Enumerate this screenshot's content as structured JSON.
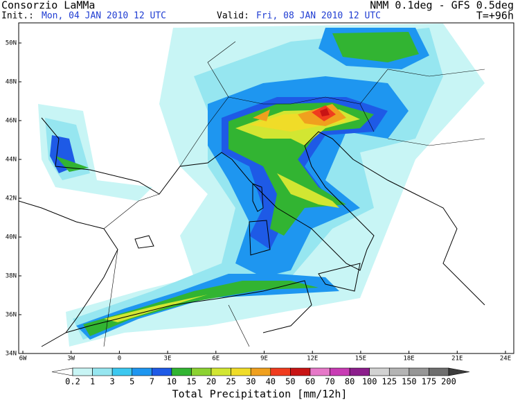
{
  "header": {
    "title": "Consorzio LaMMa",
    "model": "NMM 0.1deg - GFS 0.5deg",
    "init_label": "Init.:",
    "init": "Mon, 04 JAN 2010  12 UTC",
    "valid_label": "Valid:",
    "valid": "Fri, 08 JAN 2010  12 UTC",
    "lead": "T=+96h"
  },
  "map": {
    "lon_labels": [
      "6W",
      "3W",
      "0",
      "3E",
      "6E",
      "9E",
      "12E",
      "15E",
      "18E",
      "21E",
      "24E"
    ],
    "lat_labels": [
      "34N",
      "36N",
      "38N",
      "40N",
      "42N",
      "44N",
      "46N",
      "48N",
      "50N"
    ]
  },
  "legend": {
    "levels": [
      0.2,
      1,
      3,
      5,
      7,
      10,
      15,
      20,
      25,
      30,
      40,
      50,
      60,
      70,
      80,
      100,
      125,
      150,
      175,
      200
    ],
    "colors": [
      "#ffffff",
      "#c8f5f5",
      "#96e6f0",
      "#3cc8f0",
      "#1e96f0",
      "#1e5ae6",
      "#32b432",
      "#8cd232",
      "#d2e632",
      "#f0dc28",
      "#f0a01e",
      "#f03c1e",
      "#c81414",
      "#e678c8",
      "#c83cb4",
      "#8c1e8c",
      "#d2d2d2",
      "#b4b4b4",
      "#969696",
      "#6e6e6e",
      "#3c3c3c"
    ],
    "title": "Total Precipitation [mm/12h]"
  }
}
